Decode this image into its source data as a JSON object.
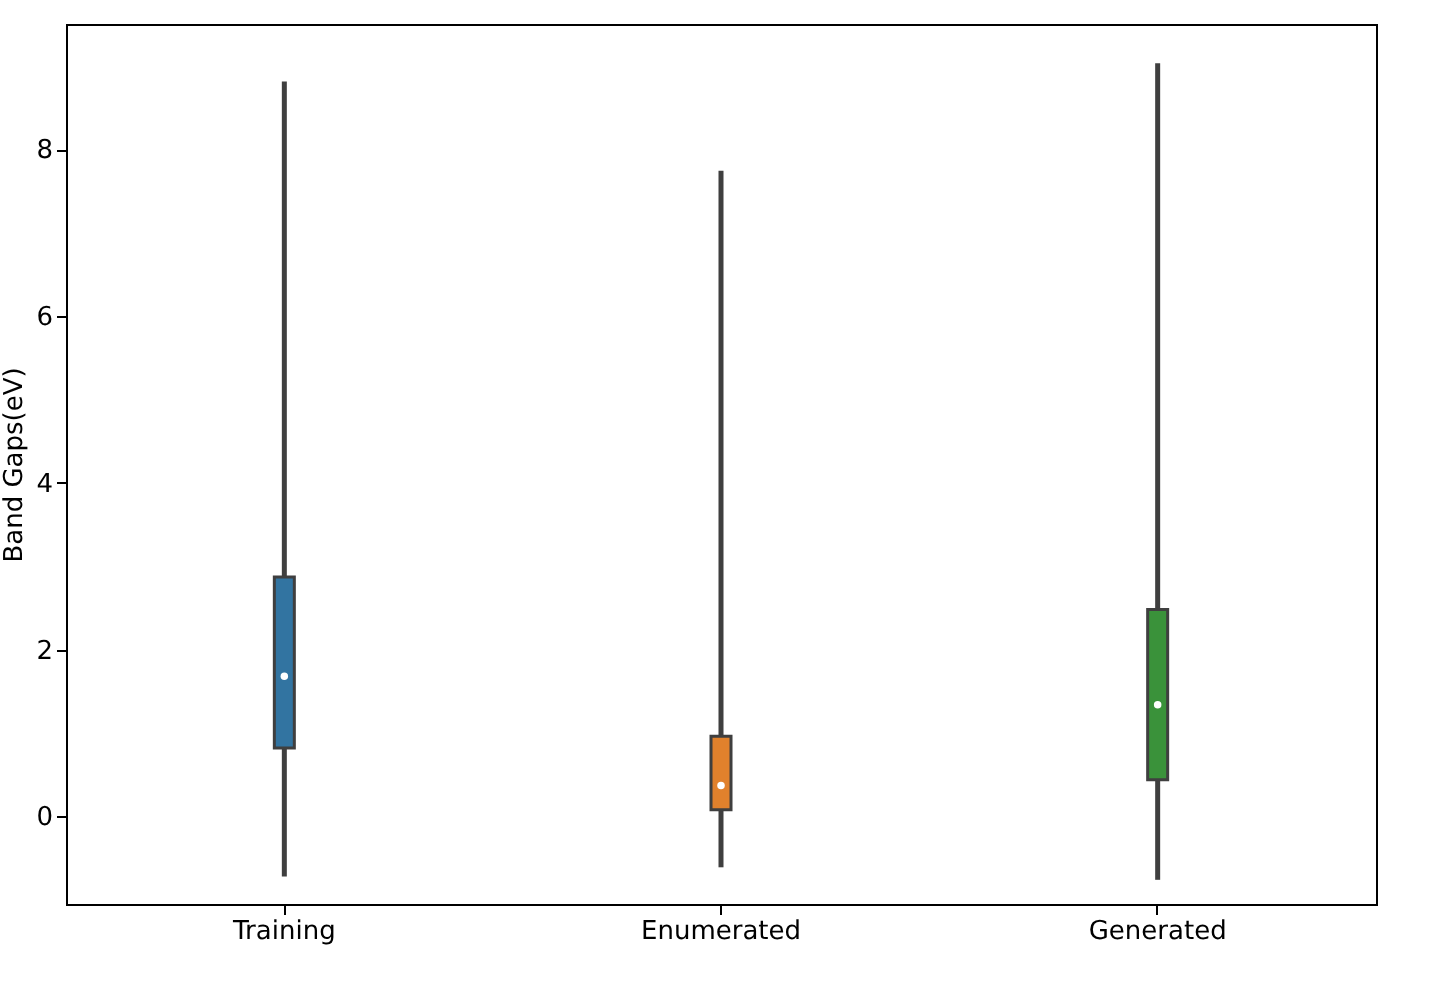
{
  "chart_data": {
    "type": "box",
    "ylabel": "Band Gaps(eV)",
    "categories": [
      "Training",
      "Enumerated",
      "Generated"
    ],
    "boxes": [
      {
        "low": -0.72,
        "q1": 0.82,
        "median": 1.68,
        "q3": 2.87,
        "high": 8.81
      },
      {
        "low": -0.61,
        "q1": 0.08,
        "median": 0.37,
        "q3": 0.96,
        "high": 7.74
      },
      {
        "low": -0.76,
        "q1": 0.44,
        "median": 1.34,
        "q3": 2.48,
        "high": 9.03
      }
    ],
    "colors": [
      "#3274a1",
      "#e1812c",
      "#3a923a"
    ],
    "ylim": [
      -1.05,
      9.5
    ],
    "yticks": [
      0,
      2,
      4,
      6,
      8
    ],
    "grid": false
  }
}
